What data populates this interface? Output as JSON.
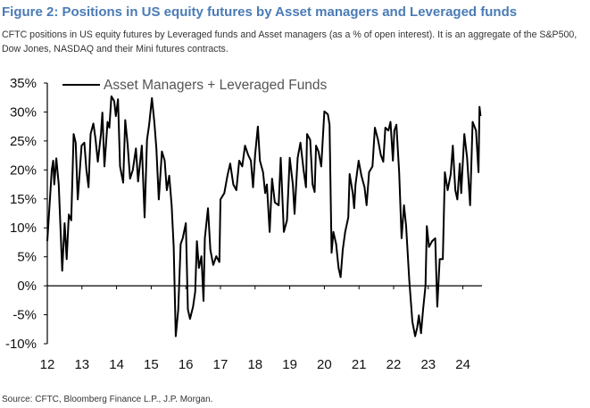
{
  "title": "Figure 2: Positions in US equity futures by Asset managers and Leveraged funds",
  "subtitle": "CFTC positions in US equity futures by Leveraged funds and Asset managers (as a % of open interest). It is an aggregate of the S&P500, Dow Jones, NASDAQ and their Mini futures contracts.",
  "source": "Source: CFTC, Bloomberg Finance L.P., J.P. Morgan.",
  "colors": {
    "title": "#4a7bb5",
    "line": "#000000"
  },
  "chart_data": {
    "type": "line",
    "title": "",
    "xlabel": "",
    "ylabel": "",
    "xlim": [
      2012,
      2024.6
    ],
    "ylim": [
      -10,
      35
    ],
    "x_ticks": [
      "12",
      "13",
      "14",
      "15",
      "16",
      "17",
      "18",
      "19",
      "20",
      "21",
      "22",
      "23",
      "24"
    ],
    "y_ticks": [
      "35%",
      "30%",
      "25%",
      "20%",
      "15%",
      "10%",
      "5%",
      "0%",
      "-5%",
      "-10%"
    ],
    "grid": false,
    "legend": {
      "position": "top-left",
      "entries": [
        "Asset Managers + Leveraged Funds"
      ]
    },
    "series": [
      {
        "name": "Asset Managers + Leveraged Funds",
        "x": [
          12.0,
          12.13,
          12.17,
          12.2,
          12.26,
          12.33,
          12.43,
          12.5,
          12.56,
          12.62,
          12.69,
          12.76,
          12.82,
          12.88,
          12.99,
          13.07,
          13.13,
          13.19,
          13.25,
          13.33,
          13.39,
          13.46,
          13.55,
          13.59,
          13.65,
          13.74,
          13.79,
          13.85,
          13.93,
          13.98,
          14.04,
          14.1,
          14.19,
          14.25,
          14.32,
          14.39,
          14.47,
          14.56,
          14.62,
          14.73,
          14.81,
          14.88,
          14.94,
          15.02,
          15.09,
          15.15,
          15.22,
          15.31,
          15.39,
          15.45,
          15.52,
          15.59,
          15.65,
          15.71,
          15.78,
          15.85,
          15.91,
          16.0,
          16.06,
          16.12,
          16.21,
          16.27,
          16.32,
          16.38,
          16.45,
          16.51,
          16.55,
          16.64,
          16.71,
          16.79,
          16.88,
          16.97,
          17.0,
          17.11,
          17.2,
          17.28,
          17.37,
          17.46,
          17.54,
          17.63,
          17.71,
          17.8,
          17.88,
          17.94,
          18.0,
          18.08,
          18.14,
          18.23,
          18.29,
          18.34,
          18.42,
          18.49,
          18.57,
          18.68,
          18.74,
          18.83,
          18.92,
          19.0,
          19.09,
          19.14,
          19.23,
          19.31,
          19.4,
          19.47,
          19.5,
          19.59,
          19.66,
          19.72,
          19.76,
          19.83,
          19.91,
          20.0,
          20.1,
          20.15,
          20.21,
          20.26,
          20.34,
          20.41,
          20.47,
          20.53,
          20.6,
          20.69,
          20.73,
          20.82,
          20.86,
          20.9,
          20.99,
          21.07,
          21.16,
          21.22,
          21.29,
          21.39,
          21.46,
          21.55,
          21.63,
          21.7,
          21.76,
          21.85,
          21.91,
          21.98,
          22.02,
          22.08,
          22.16,
          22.23,
          22.3,
          22.36,
          22.45,
          22.54,
          22.62,
          22.68,
          22.73,
          22.79,
          22.85,
          22.92,
          22.96,
          23.02,
          23.11,
          23.2,
          23.26,
          23.33,
          23.42,
          23.48,
          23.56,
          23.65,
          23.71,
          23.78,
          23.84,
          23.91,
          23.95,
          24.04,
          24.12,
          24.21,
          24.28,
          24.38,
          24.45,
          24.48,
          24.51
        ],
        "y": [
          7.7,
          20,
          21.6,
          17.5,
          22,
          17.5,
          2.6,
          10.8,
          4.6,
          12.3,
          11.3,
          26.2,
          24.7,
          14.9,
          24.2,
          24.7,
          20,
          17,
          26.2,
          28,
          25.5,
          21.4,
          26.2,
          29.9,
          20.6,
          28.3,
          27.3,
          32.7,
          31.9,
          29.3,
          32.2,
          20.6,
          17.8,
          28.6,
          24.4,
          18.5,
          20,
          23.7,
          18,
          24.2,
          11.8,
          25.2,
          27.8,
          32.4,
          28.3,
          23.7,
          14.9,
          23.2,
          21.6,
          16.5,
          19,
          13.9,
          6.7,
          -8.7,
          -4.1,
          7.2,
          8.2,
          10.8,
          -4.1,
          -5.7,
          -3.6,
          -1,
          7.7,
          3.1,
          5.1,
          -2.6,
          8.2,
          13.4,
          6.2,
          3.6,
          5.1,
          4.1,
          14.9,
          16,
          19,
          21.1,
          17.5,
          16.5,
          21.6,
          20.6,
          24.2,
          22.6,
          21.6,
          17,
          22.6,
          27.5,
          21.6,
          19.6,
          16,
          17.5,
          9.3,
          18.5,
          14.4,
          13.9,
          22.1,
          9.3,
          11.3,
          22.1,
          17.5,
          12.4,
          22.1,
          24.7,
          20,
          17,
          26.2,
          25.2,
          17.5,
          16.2,
          24.2,
          23.2,
          20.6,
          30.1,
          29.6,
          27.8,
          5.7,
          9.3,
          7.2,
          3.1,
          1.5,
          6.2,
          9.3,
          11.8,
          19.3,
          16,
          13.4,
          17.5,
          21.6,
          19,
          17,
          13.9,
          19.6,
          20.6,
          27.3,
          25.2,
          22.6,
          21.4,
          27.3,
          26.8,
          28.3,
          21.6,
          26.8,
          27.8,
          19.6,
          8.2,
          13.9,
          10.3,
          1,
          -6.2,
          -8.7,
          -7.2,
          -5.1,
          -8.2,
          -4.1,
          0,
          10.3,
          6.7,
          7.7,
          8.2,
          -3.6,
          4.6,
          4.6,
          19.6,
          16.5,
          19.3,
          24.2,
          16.5,
          14.9,
          21.1,
          16,
          26.2,
          22.1,
          13.9,
          28.3,
          26.8,
          19.6,
          30.9,
          29.3
        ]
      }
    ]
  }
}
